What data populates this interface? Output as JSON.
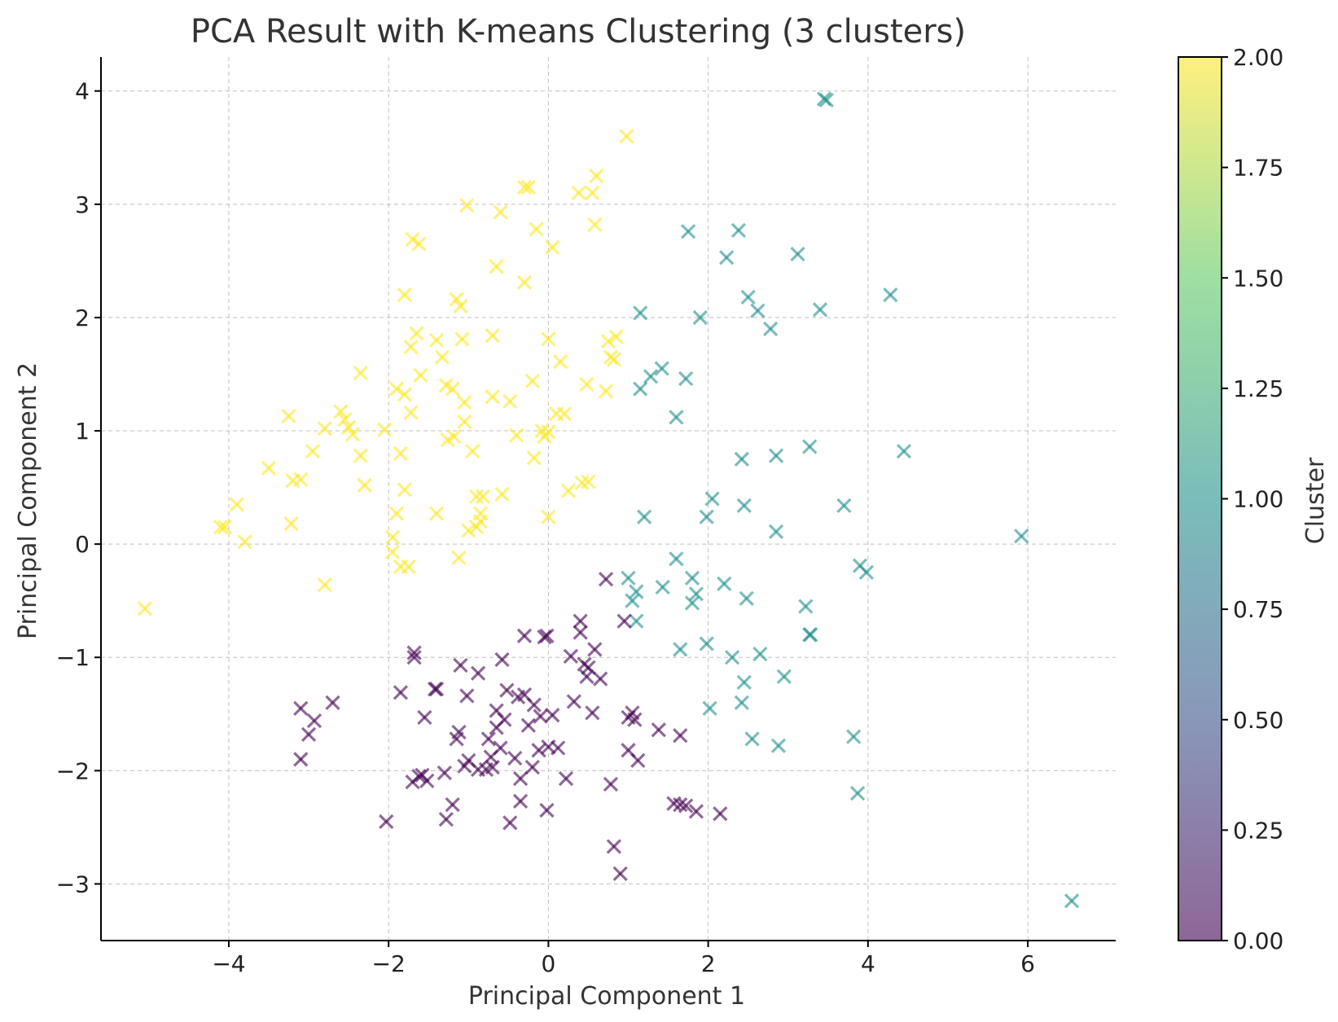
{
  "chart_data": {
    "type": "scatter",
    "title": "PCA Result with K-means Clustering (3 clusters)",
    "xlabel": "Principal Component 1",
    "ylabel": "Principal Component 2",
    "xlim": [
      -5.6,
      7.1
    ],
    "ylim": [
      -3.5,
      4.3
    ],
    "xticks": [
      -4,
      -2,
      0,
      2,
      4,
      6
    ],
    "xtick_labels": [
      "−4",
      "−2",
      "0",
      "2",
      "4",
      "6"
    ],
    "yticks": [
      -3,
      -2,
      -1,
      0,
      1,
      2,
      3,
      4
    ],
    "ytick_labels": [
      "−3",
      "−2",
      "−1",
      "0",
      "1",
      "2",
      "3",
      "4"
    ],
    "grid": true,
    "marker": "x",
    "alpha": 0.6,
    "colorbar": {
      "label": "Cluster",
      "min": 0.0,
      "max": 2.0,
      "ticks": [
        0.0,
        0.25,
        0.5,
        0.75,
        1.0,
        1.25,
        1.5,
        1.75,
        2.0
      ],
      "tick_labels": [
        "0.00",
        "0.25",
        "0.50",
        "0.75",
        "1.00",
        "1.25",
        "1.50",
        "1.75",
        "2.00"
      ],
      "colormap": "viridis",
      "stops": [
        "#440154",
        "#3b528b",
        "#21918c",
        "#5ec962",
        "#fde725"
      ]
    },
    "series": [
      {
        "cluster": 2,
        "color": "#fde725",
        "points": [
          [
            -5.05,
            -0.57
          ],
          [
            -4.1,
            0.15
          ],
          [
            -4.05,
            0.15
          ],
          [
            -3.9,
            0.35
          ],
          [
            -3.8,
            0.02
          ],
          [
            -3.5,
            0.67
          ],
          [
            -3.2,
            0.56
          ],
          [
            -3.1,
            0.57
          ],
          [
            -3.22,
            0.18
          ],
          [
            -3.25,
            1.13
          ],
          [
            -2.95,
            0.82
          ],
          [
            -2.8,
            1.02
          ],
          [
            -2.8,
            -0.36
          ],
          [
            -2.6,
            1.17
          ],
          [
            -2.55,
            1.1
          ],
          [
            -2.5,
            1.03
          ],
          [
            -2.45,
            0.97
          ],
          [
            -2.35,
            1.51
          ],
          [
            -2.35,
            0.78
          ],
          [
            -2.3,
            0.52
          ],
          [
            -2.05,
            1.01
          ],
          [
            -1.95,
            0.06
          ],
          [
            -1.95,
            -0.07
          ],
          [
            -1.9,
            0.27
          ],
          [
            -1.9,
            1.37
          ],
          [
            -1.85,
            0.8
          ],
          [
            -1.85,
            -0.2
          ],
          [
            -1.8,
            0.48
          ],
          [
            -1.8,
            1.32
          ],
          [
            -1.8,
            2.2
          ],
          [
            -1.75,
            -0.2
          ],
          [
            -1.72,
            1.16
          ],
          [
            -1.72,
            1.74
          ],
          [
            -1.7,
            2.69
          ],
          [
            -1.65,
            1.86
          ],
          [
            -1.62,
            2.65
          ],
          [
            -1.6,
            1.49
          ],
          [
            -1.4,
            0.27
          ],
          [
            -1.4,
            1.8
          ],
          [
            -1.33,
            1.65
          ],
          [
            -1.28,
            1.4
          ],
          [
            -1.26,
            0.92
          ],
          [
            -1.2,
            1.37
          ],
          [
            -1.18,
            0.95
          ],
          [
            -1.15,
            2.16
          ],
          [
            -1.12,
            -0.12
          ],
          [
            -1.1,
            2.1
          ],
          [
            -1.08,
            1.81
          ],
          [
            -1.05,
            1.08
          ],
          [
            -1.05,
            1.25
          ],
          [
            -1.02,
            2.99
          ],
          [
            -1.0,
            0.12
          ],
          [
            -0.95,
            0.82
          ],
          [
            -0.9,
            0.42
          ],
          [
            -0.9,
            0.15
          ],
          [
            -0.85,
            0.27
          ],
          [
            -0.85,
            0.2
          ],
          [
            -0.82,
            0.42
          ],
          [
            -0.7,
            1.84
          ],
          [
            -0.7,
            1.3
          ],
          [
            -0.65,
            2.45
          ],
          [
            -0.6,
            2.93
          ],
          [
            -0.58,
            0.44
          ],
          [
            -0.48,
            1.26
          ],
          [
            -0.4,
            0.96
          ],
          [
            -0.3,
            2.31
          ],
          [
            -0.3,
            3.15
          ],
          [
            -0.25,
            3.15
          ],
          [
            -0.2,
            1.44
          ],
          [
            -0.18,
            0.76
          ],
          [
            -0.15,
            2.78
          ],
          [
            -0.08,
            1.0
          ],
          [
            -0.05,
            0.95
          ],
          [
            0.0,
            0.99
          ],
          [
            0.0,
            0.24
          ],
          [
            0.0,
            1.81
          ],
          [
            0.05,
            2.62
          ],
          [
            0.1,
            1.15
          ],
          [
            0.15,
            1.61
          ],
          [
            0.2,
            1.15
          ],
          [
            0.25,
            0.47
          ],
          [
            0.38,
            3.1
          ],
          [
            0.42,
            0.54
          ],
          [
            0.48,
            1.41
          ],
          [
            0.5,
            0.55
          ],
          [
            0.55,
            3.1
          ],
          [
            0.58,
            2.82
          ],
          [
            0.6,
            3.25
          ],
          [
            0.72,
            1.35
          ],
          [
            0.75,
            1.79
          ],
          [
            0.78,
            1.65
          ],
          [
            0.82,
            1.63
          ],
          [
            0.85,
            1.83
          ],
          [
            0.98,
            3.6
          ]
        ]
      },
      {
        "cluster": 1,
        "color": "#21918c",
        "points": [
          [
            1.0,
            -0.3
          ],
          [
            1.05,
            -0.5
          ],
          [
            1.1,
            -0.42
          ],
          [
            1.1,
            -0.68
          ],
          [
            1.15,
            2.04
          ],
          [
            1.15,
            1.37
          ],
          [
            1.2,
            0.24
          ],
          [
            1.28,
            1.48
          ],
          [
            1.42,
            1.55
          ],
          [
            1.43,
            -0.38
          ],
          [
            1.6,
            1.12
          ],
          [
            1.6,
            -0.13
          ],
          [
            1.65,
            -0.93
          ],
          [
            1.72,
            1.46
          ],
          [
            1.75,
            2.76
          ],
          [
            1.8,
            -0.3
          ],
          [
            1.8,
            -0.52
          ],
          [
            1.85,
            -0.44
          ],
          [
            1.9,
            2.0
          ],
          [
            1.98,
            -0.88
          ],
          [
            1.98,
            0.24
          ],
          [
            2.02,
            -1.45
          ],
          [
            2.05,
            0.4
          ],
          [
            2.2,
            -0.35
          ],
          [
            2.23,
            2.53
          ],
          [
            2.3,
            -1.0
          ],
          [
            2.38,
            2.77
          ],
          [
            2.42,
            0.75
          ],
          [
            2.42,
            -1.4
          ],
          [
            2.45,
            0.34
          ],
          [
            2.45,
            -1.22
          ],
          [
            2.48,
            -0.48
          ],
          [
            2.5,
            2.18
          ],
          [
            2.55,
            -1.72
          ],
          [
            2.62,
            2.06
          ],
          [
            2.65,
            -0.97
          ],
          [
            2.78,
            1.9
          ],
          [
            2.85,
            0.78
          ],
          [
            2.85,
            0.11
          ],
          [
            2.88,
            -1.78
          ],
          [
            2.95,
            -1.17
          ],
          [
            3.12,
            2.56
          ],
          [
            3.22,
            -0.55
          ],
          [
            3.27,
            0.86
          ],
          [
            3.27,
            -0.8
          ],
          [
            3.28,
            -0.8
          ],
          [
            3.4,
            2.07
          ],
          [
            3.45,
            3.93
          ],
          [
            3.48,
            3.92
          ],
          [
            3.7,
            0.34
          ],
          [
            3.82,
            -1.7
          ],
          [
            3.87,
            -2.2
          ],
          [
            3.9,
            -0.19
          ],
          [
            3.98,
            -0.25
          ],
          [
            4.28,
            2.2
          ],
          [
            4.45,
            0.82
          ],
          [
            5.92,
            0.07
          ],
          [
            6.55,
            -3.15
          ]
        ]
      },
      {
        "cluster": 0,
        "color": "#440154",
        "points": [
          [
            -3.1,
            -1.45
          ],
          [
            -3.1,
            -1.9
          ],
          [
            -3.0,
            -1.68
          ],
          [
            -2.93,
            -1.56
          ],
          [
            -2.7,
            -1.4
          ],
          [
            -2.03,
            -2.45
          ],
          [
            -1.85,
            -1.31
          ],
          [
            -1.68,
            -0.96
          ],
          [
            -1.68,
            -1.0
          ],
          [
            -1.7,
            -2.1
          ],
          [
            -1.62,
            -2.05
          ],
          [
            -1.58,
            -2.04
          ],
          [
            -1.55,
            -1.53
          ],
          [
            -1.52,
            -2.09
          ],
          [
            -1.42,
            -1.28
          ],
          [
            -1.4,
            -1.28
          ],
          [
            -1.3,
            -2.02
          ],
          [
            -1.28,
            -2.43
          ],
          [
            -1.2,
            -2.3
          ],
          [
            -1.15,
            -1.72
          ],
          [
            -1.12,
            -1.66
          ],
          [
            -1.1,
            -1.07
          ],
          [
            -1.05,
            -1.96
          ],
          [
            -1.02,
            -1.34
          ],
          [
            -1.0,
            -1.91
          ],
          [
            -0.88,
            -1.14
          ],
          [
            -0.88,
            -1.99
          ],
          [
            -0.78,
            -1.99
          ],
          [
            -0.75,
            -1.72
          ],
          [
            -0.72,
            -1.88
          ],
          [
            -0.7,
            -1.97
          ],
          [
            -0.65,
            -1.62
          ],
          [
            -0.65,
            -1.47
          ],
          [
            -0.6,
            -1.8
          ],
          [
            -0.58,
            -1.02
          ],
          [
            -0.55,
            -1.55
          ],
          [
            -0.52,
            -1.29
          ],
          [
            -0.48,
            -2.46
          ],
          [
            -0.42,
            -1.89
          ],
          [
            -0.38,
            -1.35
          ],
          [
            -0.35,
            -2.07
          ],
          [
            -0.35,
            -2.27
          ],
          [
            -0.3,
            -0.81
          ],
          [
            -0.3,
            -1.33
          ],
          [
            -0.25,
            -1.6
          ],
          [
            -0.2,
            -1.97
          ],
          [
            -0.18,
            -1.42
          ],
          [
            -0.12,
            -1.82
          ],
          [
            -0.1,
            -1.52
          ],
          [
            -0.05,
            -0.82
          ],
          [
            -0.02,
            -0.81
          ],
          [
            -0.02,
            -2.35
          ],
          [
            0.0,
            -1.79
          ],
          [
            0.05,
            -1.51
          ],
          [
            0.12,
            -1.8
          ],
          [
            0.22,
            -2.07
          ],
          [
            0.28,
            -0.99
          ],
          [
            0.32,
            -1.39
          ],
          [
            0.4,
            -0.68
          ],
          [
            0.4,
            -0.78
          ],
          [
            0.45,
            -1.06
          ],
          [
            0.48,
            -1.17
          ],
          [
            0.5,
            -1.09
          ],
          [
            0.55,
            -1.49
          ],
          [
            0.58,
            -0.93
          ],
          [
            0.65,
            -1.19
          ],
          [
            0.72,
            -0.31
          ],
          [
            0.78,
            -2.12
          ],
          [
            0.82,
            -2.67
          ],
          [
            0.9,
            -2.91
          ],
          [
            0.95,
            -0.68
          ],
          [
            1.0,
            -1.82
          ],
          [
            1.0,
            -1.53
          ],
          [
            1.05,
            -1.49
          ],
          [
            1.08,
            -1.55
          ],
          [
            1.12,
            -1.91
          ],
          [
            1.38,
            -1.64
          ],
          [
            1.57,
            -2.29
          ],
          [
            1.65,
            -1.69
          ],
          [
            1.65,
            -2.3
          ],
          [
            1.72,
            -2.31
          ],
          [
            1.85,
            -2.36
          ],
          [
            2.15,
            -2.38
          ]
        ]
      }
    ]
  }
}
